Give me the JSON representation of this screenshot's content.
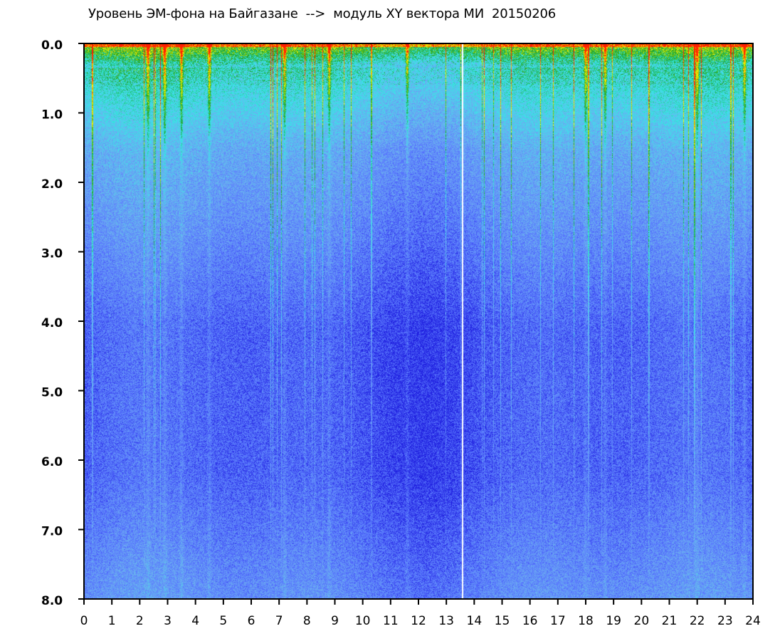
{
  "chart_data": {
    "type": "heatmap",
    "title": "Уровень ЭМ-фона на Байгазане  -->  модуль XY вектора МИ  20150206",
    "xlabel": "",
    "ylabel": "",
    "xlim": [
      0,
      24
    ],
    "ylim": [
      0,
      8
    ],
    "y_axis_inverted": true,
    "x_ticks": [
      "0",
      "1",
      "2",
      "3",
      "4",
      "5",
      "6",
      "7",
      "8",
      "9",
      "10",
      "11",
      "12",
      "13",
      "14",
      "15",
      "16",
      "17",
      "18",
      "19",
      "20",
      "21",
      "22",
      "23",
      "24"
    ],
    "y_ticks": [
      "0.0",
      "1.0",
      "2.0",
      "3.0",
      "4.0",
      "5.0",
      "6.0",
      "7.0",
      "8.0"
    ],
    "colormap": [
      "#2020e0",
      "#5a78ff",
      "#6cb0f0",
      "#35e8e8",
      "#1ca020",
      "#ffff00",
      "#ff2000"
    ],
    "gap_at_hour": 13.55,
    "disturbance_hours": [
      2.3,
      2.9,
      3.5,
      4.5,
      7.2,
      8.8,
      11.6,
      18.0,
      18.7,
      22.0,
      23.7
    ],
    "grid": false,
    "legend": "none"
  }
}
